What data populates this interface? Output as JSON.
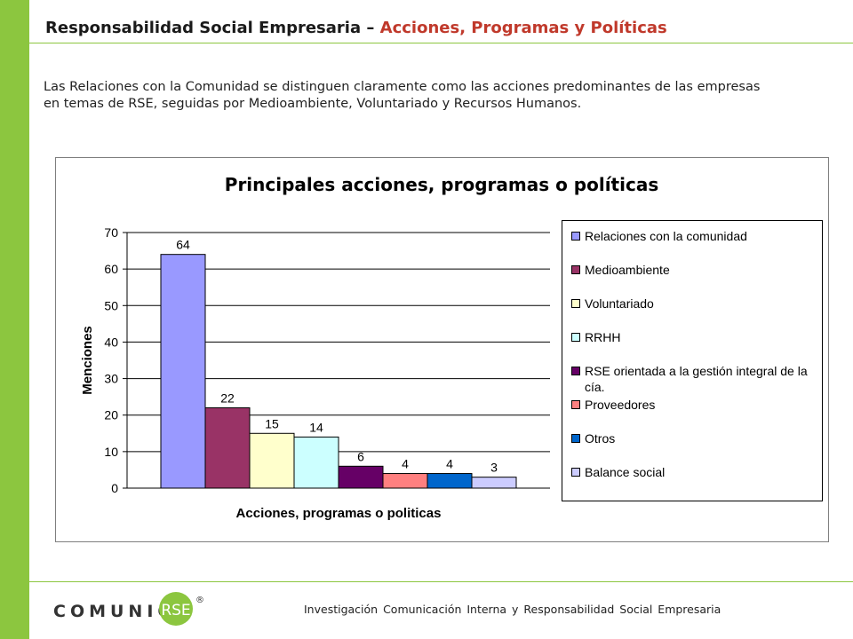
{
  "header": {
    "title_main": "Responsabilidad Social Empresaria – ",
    "title_accent": "Acciones, Programas y Políticas",
    "accent_color": "#c0392b",
    "brand_green": "#8cc63f"
  },
  "intro_text": "Las Relaciones con la Comunidad se distinguen claramente como las acciones predominantes de las empresas en temas de RSE, seguidas por Medioambiente, Voluntariado y Recursos Humanos.",
  "chart_data": {
    "type": "bar",
    "title": "Principales acciones, programas o políticas",
    "xlabel": "Acciones, programas o politicas",
    "ylabel": "Menciones",
    "ylim": [
      0,
      70
    ],
    "yticks": [
      0,
      10,
      20,
      30,
      40,
      50,
      60,
      70
    ],
    "grid": true,
    "legend_position": "right",
    "series": [
      {
        "name": "Relaciones con la comunidad",
        "value": 64,
        "color": "#9999ff"
      },
      {
        "name": "Medioambiente",
        "value": 22,
        "color": "#993366"
      },
      {
        "name": "Voluntariado",
        "value": 15,
        "color": "#ffffcc"
      },
      {
        "name": "RRHH",
        "value": 14,
        "color": "#ccffff"
      },
      {
        "name": "RSE orientada a la gestión integral de la cía.",
        "value": 6,
        "color": "#660066"
      },
      {
        "name": "Proveedores",
        "value": 4,
        "color": "#ff8080"
      },
      {
        "name": "Otros",
        "value": 4,
        "color": "#0066cc"
      },
      {
        "name": "Balance social",
        "value": 3,
        "color": "#ccccff"
      }
    ]
  },
  "footer": {
    "logo_text": "COMUNICA",
    "logo_badge": "RSE",
    "logo_mark": "®",
    "text": "Investigación Comunicación Interna y Responsabilidad Social Empresaria"
  }
}
